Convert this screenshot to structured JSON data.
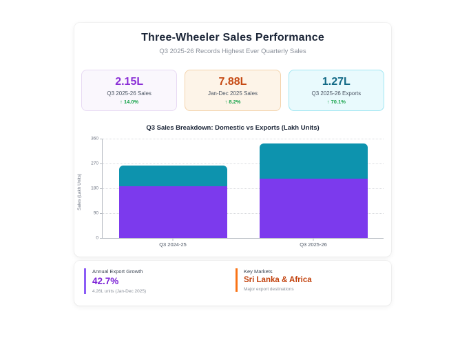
{
  "header": {
    "title": "Three-Wheeler Sales Performance",
    "subtitle": "Q3 2025-26 Records Highest Ever Quarterly Sales"
  },
  "colors": {
    "positive_change": "#16a34a",
    "domestic_bar": "#7c3aed",
    "exports_bar": "#0d93ae"
  },
  "stats": [
    {
      "value": "2.15L",
      "label": "Q3 2025-26 Sales",
      "change": "↑ 14.0%",
      "value_color": "#8b2fd6",
      "bg": "#faf7fd",
      "border": "#e7d9f3"
    },
    {
      "value": "7.88L",
      "label": "Jan-Dec 2025 Sales",
      "change": "↑ 8.2%",
      "value_color": "#c64a14",
      "bg": "#fdf4e8",
      "border": "#f3d3ab"
    },
    {
      "value": "1.27L",
      "label": "Q3 2025-26 Exports",
      "change": "↑ 70.1%",
      "value_color": "#136a86",
      "bg": "#e9fafd",
      "border": "#9fe6f2"
    }
  ],
  "chart_data": {
    "type": "bar",
    "stacked": true,
    "title": "Q3 Sales Breakdown: Domestic vs Exports (Lakh Units)",
    "categories": [
      "Q3 2024-25",
      "Q3 2025-26"
    ],
    "series": [
      {
        "name": "Domestic",
        "color": "#7c3aed",
        "values": [
          188,
          215
        ]
      },
      {
        "name": "Exports",
        "color": "#0d93ae",
        "values": [
          75,
          127
        ]
      }
    ],
    "xlabel": "",
    "ylabel": "Sales (Lakh Units)",
    "yticks": [
      0,
      90,
      180,
      270,
      360
    ],
    "ylim": [
      0,
      360
    ],
    "grid": "horizontal-dotted",
    "legend": "none"
  },
  "footer_cards": [
    {
      "label": "Annual Export Growth",
      "value": "42.7%",
      "sub": "4.26L units (Jan-Dec 2025)",
      "accent": "#8b5cf6",
      "value_color": "#7c22d6"
    },
    {
      "label": "Key Markets",
      "value": "Sri Lanka & Africa",
      "sub": "Major export destinations",
      "accent": "#f97316",
      "value_color": "#c2410c"
    }
  ]
}
